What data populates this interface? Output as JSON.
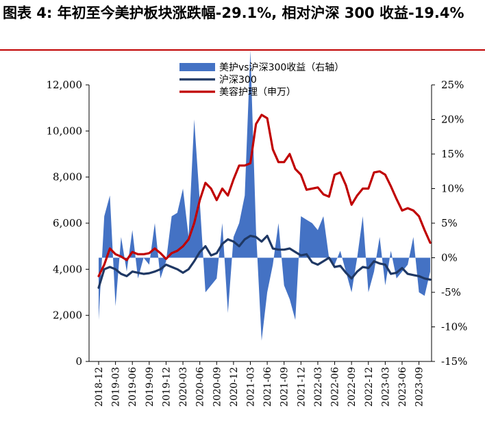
{
  "title": "图表 4: 年初至今美护板块涨跌幅-29.1%, 相对沪深 300 收益-19.4%",
  "chart_data": {
    "type": "combo-area-line",
    "x": [
      "2018-12",
      "2019-01",
      "2019-02",
      "2019-03",
      "2019-04",
      "2019-05",
      "2019-06",
      "2019-07",
      "2019-08",
      "2019-09",
      "2019-10",
      "2019-11",
      "2019-12",
      "2020-01",
      "2020-02",
      "2020-03",
      "2020-04",
      "2020-05",
      "2020-06",
      "2020-07",
      "2020-08",
      "2020-09",
      "2020-10",
      "2020-11",
      "2020-12",
      "2021-01",
      "2021-02",
      "2021-03",
      "2021-04",
      "2021-05",
      "2021-06",
      "2021-07",
      "2021-08",
      "2021-09",
      "2021-10",
      "2021-11",
      "2021-12",
      "2022-01",
      "2022-02",
      "2022-03",
      "2022-04",
      "2022-05",
      "2022-06",
      "2022-07",
      "2022-08",
      "2022-09",
      "2022-10",
      "2022-11",
      "2022-12",
      "2023-01",
      "2023-02",
      "2023-03",
      "2023-04",
      "2023-05",
      "2023-06",
      "2023-07",
      "2023-08",
      "2023-09",
      "2023-10",
      "2023-11"
    ],
    "xticks": [
      "2018-12",
      "2019-03",
      "2019-06",
      "2019-09",
      "2019-12",
      "2020-03",
      "2020-06",
      "2020-09",
      "2020-12",
      "2021-03",
      "2021-06",
      "2021-09",
      "2021-12",
      "2022-03",
      "2022-06",
      "2022-09",
      "2022-12",
      "2023-03",
      "2023-06",
      "2023-09"
    ],
    "left_axis": {
      "ylim": [
        0,
        12000
      ],
      "ticks": [
        "0",
        "2,000",
        "4,000",
        "6,000",
        "8,000",
        "10,000",
        "12,000"
      ]
    },
    "right_axis": {
      "ylim": [
        -15,
        25
      ],
      "ticks": [
        "-15%",
        "-10%",
        "-5%",
        "0%",
        "5%",
        "10%",
        "15%",
        "20%",
        "25%"
      ]
    },
    "series": [
      {
        "name": "美护vs沪深300收益（右轴）",
        "kind": "area",
        "axis": "right",
        "color": "#4472c4",
        "values": [
          -9,
          6,
          9,
          -7,
          3,
          -2,
          4,
          -3,
          0,
          -1,
          5,
          -3,
          -0.5,
          6,
          6.5,
          10,
          3,
          20,
          8,
          -5,
          -4,
          -3,
          5,
          -8,
          3,
          5,
          9,
          30,
          4,
          -12,
          -5,
          -1,
          5,
          -4,
          -6,
          -9,
          6,
          5.5,
          5,
          4,
          6,
          0,
          -1,
          1,
          -2,
          -5,
          0,
          6,
          -5,
          -2,
          3,
          -4,
          1,
          -3,
          -2,
          -1,
          3,
          -5,
          -5.5,
          -2
        ]
      },
      {
        "name": "沪深300",
        "kind": "line",
        "axis": "left",
        "color": "#1f3864",
        "values": [
          3200,
          4000,
          4100,
          4000,
          3800,
          3700,
          3900,
          3850,
          3800,
          3830,
          3900,
          4000,
          4200,
          4100,
          4000,
          3850,
          4000,
          4350,
          4750,
          5000,
          4600,
          4700,
          5100,
          5300,
          5200,
          5000,
          5300,
          5450,
          5400,
          5200,
          5450,
          4900,
          4850,
          4850,
          4900,
          4750,
          4600,
          4650,
          4300,
          4200,
          4350,
          4500,
          4100,
          4150,
          3850,
          3600,
          3900,
          4100,
          4050,
          4350,
          4250,
          4200,
          3800,
          3850,
          4050,
          3800,
          3750,
          3700,
          3600,
          3550
        ]
      },
      {
        "name": "美容护理（申万）",
        "kind": "line",
        "axis": "left",
        "color": "#c00000",
        "values": [
          3700,
          4200,
          4900,
          4650,
          4550,
          4400,
          4750,
          4650,
          4650,
          4700,
          4900,
          4700,
          4450,
          4700,
          4800,
          5000,
          5300,
          6000,
          7000,
          7750,
          7500,
          7000,
          7500,
          7200,
          7900,
          8500,
          8500,
          8600,
          10300,
          10700,
          10550,
          9200,
          8650,
          8650,
          9000,
          8350,
          8100,
          7450,
          7500,
          7550,
          7250,
          7150,
          8100,
          8200,
          7650,
          6800,
          7200,
          7500,
          7500,
          8200,
          8250,
          8100,
          7600,
          7050,
          6550,
          6650,
          6550,
          6300,
          5700,
          5150
        ]
      }
    ]
  }
}
